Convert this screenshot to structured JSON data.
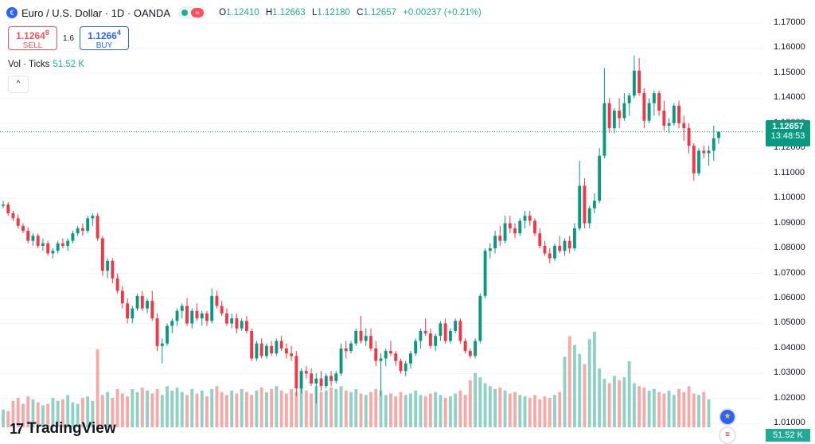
{
  "symbol": {
    "title": "Euro / U.S. Dollar · 1D · OANDA",
    "icon": "euro-dollar-icon",
    "status_icon": "market-open-dot-icon",
    "status_alt_icon": "wave-icon"
  },
  "ohlc": {
    "o_label": "O",
    "o": "1.12410",
    "h_label": "H",
    "h": "1.12663",
    "l_label": "L",
    "l": "1.12180",
    "c_label": "C",
    "c": "1.12657",
    "change": "+0.00237 (+0.21%)"
  },
  "trade": {
    "sell_price_main": "1.1264",
    "sell_price_sup": "8",
    "sell_label": "SELL",
    "spread": "1.6",
    "buy_price_main": "1.1266",
    "buy_price_sup": "4",
    "buy_label": "BUY"
  },
  "volume_legend": {
    "label": "Vol · Ticks",
    "value": "51.52 K"
  },
  "collapse_icon": "chevron-up-icon",
  "price_axis": {
    "ticks": [
      "1.17000",
      "1.16000",
      "1.15000",
      "1.14000",
      "1.13000",
      "1.12000",
      "1.11000",
      "1.10000",
      "1.09000",
      "1.08000",
      "1.07000",
      "1.06000",
      "1.05000",
      "1.04000",
      "1.03000",
      "1.02000",
      "1.01000"
    ],
    "last_price": "1.12657",
    "countdown": "13:48:53",
    "volume_tag": "51.52 K"
  },
  "branding": {
    "logo_text": "TradingView",
    "logo_icon": "tradingview-logo-icon"
  },
  "colors": {
    "up": "#089981",
    "down": "#f23645",
    "vol_up": "#8fd1c5",
    "vol_down": "#f7a9a7",
    "accent": "#2962ff"
  },
  "chart_data": {
    "type": "candlestick",
    "title": "Euro / U.S. Dollar · 1D · OANDA",
    "ylim": [
      1.0085,
      1.1735
    ],
    "last_price": 1.12657,
    "candles": [
      [
        1.097,
        1.099,
        1.096,
        1.0975
      ],
      [
        1.0975,
        1.0985,
        1.093,
        1.094
      ],
      [
        1.094,
        1.095,
        1.091,
        1.092
      ],
      [
        1.092,
        1.0935,
        1.088,
        1.089
      ],
      [
        1.089,
        1.09,
        1.086,
        1.087
      ],
      [
        1.087,
        1.0885,
        1.082,
        1.083
      ],
      [
        1.083,
        1.086,
        1.081,
        1.085
      ],
      [
        1.085,
        1.086,
        1.08,
        1.081
      ],
      [
        1.081,
        1.084,
        1.079,
        1.082
      ],
      [
        1.082,
        1.083,
        1.077,
        1.078
      ],
      [
        1.078,
        1.08,
        1.076,
        1.079
      ],
      [
        1.079,
        1.083,
        1.078,
        1.082
      ],
      [
        1.082,
        1.084,
        1.08,
        1.081
      ],
      [
        1.081,
        1.084,
        1.079,
        1.083
      ],
      [
        1.083,
        1.087,
        1.082,
        1.086
      ],
      [
        1.086,
        1.089,
        1.085,
        1.088
      ],
      [
        1.088,
        1.09,
        1.085,
        1.087
      ],
      [
        1.087,
        1.093,
        1.086,
        1.092
      ],
      [
        1.092,
        1.094,
        1.089,
        1.093
      ],
      [
        1.093,
        1.094,
        1.083,
        1.084
      ],
      [
        1.084,
        1.085,
        1.069,
        1.071
      ],
      [
        1.071,
        1.076,
        1.068,
        1.075
      ],
      [
        1.075,
        1.076,
        1.066,
        1.068
      ],
      [
        1.068,
        1.07,
        1.062,
        1.063
      ],
      [
        1.063,
        1.065,
        1.056,
        1.058
      ],
      [
        1.058,
        1.06,
        1.05,
        1.052
      ],
      [
        1.052,
        1.057,
        1.05,
        1.056
      ],
      [
        1.056,
        1.062,
        1.055,
        1.061
      ],
      [
        1.061,
        1.063,
        1.055,
        1.056
      ],
      [
        1.056,
        1.06,
        1.054,
        1.059
      ],
      [
        1.059,
        1.063,
        1.051,
        1.052
      ],
      [
        1.052,
        1.054,
        1.039,
        1.041
      ],
      [
        1.041,
        1.044,
        1.034,
        1.042
      ],
      [
        1.042,
        1.05,
        1.041,
        1.049
      ],
      [
        1.049,
        1.052,
        1.046,
        1.051
      ],
      [
        1.051,
        1.056,
        1.049,
        1.055
      ],
      [
        1.055,
        1.058,
        1.052,
        1.057
      ],
      [
        1.057,
        1.06,
        1.049,
        1.05
      ],
      [
        1.05,
        1.056,
        1.048,
        1.055
      ],
      [
        1.055,
        1.058,
        1.051,
        1.052
      ],
      [
        1.052,
        1.055,
        1.049,
        1.054
      ],
      [
        1.054,
        1.055,
        1.049,
        1.051
      ],
      [
        1.051,
        1.064,
        1.05,
        1.061
      ],
      [
        1.061,
        1.063,
        1.056,
        1.057
      ],
      [
        1.057,
        1.059,
        1.053,
        1.054
      ],
      [
        1.054,
        1.056,
        1.049,
        1.05
      ],
      [
        1.05,
        1.054,
        1.048,
        1.052
      ],
      [
        1.052,
        1.054,
        1.046,
        1.048
      ],
      [
        1.048,
        1.052,
        1.047,
        1.051
      ],
      [
        1.051,
        1.053,
        1.046,
        1.047
      ],
      [
        1.047,
        1.048,
        1.035,
        1.036
      ],
      [
        1.036,
        1.043,
        1.035,
        1.042
      ],
      [
        1.042,
        1.044,
        1.036,
        1.037
      ],
      [
        1.037,
        1.042,
        1.036,
        1.041
      ],
      [
        1.041,
        1.043,
        1.037,
        1.038
      ],
      [
        1.038,
        1.044,
        1.037,
        1.043
      ],
      [
        1.043,
        1.045,
        1.039,
        1.04
      ],
      [
        1.04,
        1.042,
        1.036,
        1.038
      ],
      [
        1.038,
        1.041,
        1.035,
        1.037
      ],
      [
        1.037,
        1.039,
        1.021,
        1.024
      ],
      [
        1.024,
        1.032,
        1.022,
        1.031
      ],
      [
        1.031,
        1.033,
        1.028,
        1.03
      ],
      [
        1.03,
        1.032,
        1.025,
        1.026
      ],
      [
        1.026,
        1.03,
        1.018,
        1.028
      ],
      [
        1.028,
        1.031,
        1.023,
        1.025
      ],
      [
        1.025,
        1.03,
        1.024,
        1.029
      ],
      [
        1.029,
        1.031,
        1.025,
        1.027
      ],
      [
        1.027,
        1.031,
        1.026,
        1.03
      ],
      [
        1.03,
        1.042,
        1.029,
        1.04
      ],
      [
        1.04,
        1.043,
        1.036,
        1.039
      ],
      [
        1.039,
        1.043,
        1.038,
        1.042
      ],
      [
        1.042,
        1.048,
        1.041,
        1.047
      ],
      [
        1.047,
        1.053,
        1.042,
        1.043
      ],
      [
        1.043,
        1.048,
        1.041,
        1.045
      ],
      [
        1.045,
        1.048,
        1.039,
        1.04
      ],
      [
        1.04,
        1.043,
        1.033,
        1.035
      ],
      [
        1.035,
        1.038,
        1.021,
        1.036
      ],
      [
        1.036,
        1.04,
        1.033,
        1.039
      ],
      [
        1.039,
        1.043,
        1.037,
        1.038
      ],
      [
        1.038,
        1.039,
        1.033,
        1.035
      ],
      [
        1.035,
        1.036,
        1.03,
        1.031
      ],
      [
        1.031,
        1.035,
        1.029,
        1.034
      ],
      [
        1.034,
        1.039,
        1.032,
        1.038
      ],
      [
        1.038,
        1.044,
        1.037,
        1.043
      ],
      [
        1.043,
        1.048,
        1.04,
        1.047
      ],
      [
        1.047,
        1.052,
        1.045,
        1.046
      ],
      [
        1.046,
        1.048,
        1.04,
        1.041
      ],
      [
        1.041,
        1.046,
        1.039,
        1.045
      ],
      [
        1.045,
        1.051,
        1.043,
        1.05
      ],
      [
        1.05,
        1.052,
        1.042,
        1.043
      ],
      [
        1.043,
        1.048,
        1.042,
        1.047
      ],
      [
        1.047,
        1.052,
        1.046,
        1.051
      ],
      [
        1.051,
        1.052,
        1.042,
        1.043
      ],
      [
        1.043,
        1.044,
        1.038,
        1.039
      ],
      [
        1.039,
        1.04,
        1.036,
        1.037
      ],
      [
        1.037,
        1.044,
        1.036,
        1.043
      ],
      [
        1.043,
        1.062,
        1.042,
        1.061
      ],
      [
        1.061,
        1.08,
        1.06,
        1.079
      ],
      [
        1.079,
        1.082,
        1.076,
        1.08
      ],
      [
        1.08,
        1.087,
        1.078,
        1.085
      ],
      [
        1.085,
        1.089,
        1.081,
        1.083
      ],
      [
        1.083,
        1.093,
        1.082,
        1.09
      ],
      [
        1.09,
        1.093,
        1.086,
        1.088
      ],
      [
        1.088,
        1.09,
        1.084,
        1.086
      ],
      [
        1.086,
        1.092,
        1.085,
        1.091
      ],
      [
        1.091,
        1.095,
        1.088,
        1.093
      ],
      [
        1.093,
        1.095,
        1.089,
        1.091
      ],
      [
        1.091,
        1.092,
        1.085,
        1.086
      ],
      [
        1.086,
        1.088,
        1.08,
        1.081
      ],
      [
        1.081,
        1.083,
        1.077,
        1.078
      ],
      [
        1.078,
        1.08,
        1.074,
        1.076
      ],
      [
        1.076,
        1.082,
        1.075,
        1.081
      ],
      [
        1.081,
        1.085,
        1.078,
        1.079
      ],
      [
        1.079,
        1.084,
        1.077,
        1.083
      ],
      [
        1.083,
        1.085,
        1.078,
        1.08
      ],
      [
        1.08,
        1.09,
        1.079,
        1.088
      ],
      [
        1.088,
        1.115,
        1.087,
        1.105
      ],
      [
        1.105,
        1.108,
        1.088,
        1.09
      ],
      [
        1.09,
        1.097,
        1.088,
        1.096
      ],
      [
        1.096,
        1.102,
        1.094,
        1.099
      ],
      [
        1.099,
        1.12,
        1.098,
        1.117
      ],
      [
        1.117,
        1.152,
        1.116,
        1.138
      ],
      [
        1.138,
        1.14,
        1.126,
        1.128
      ],
      [
        1.128,
        1.136,
        1.126,
        1.135
      ],
      [
        1.135,
        1.14,
        1.128,
        1.132
      ],
      [
        1.132,
        1.142,
        1.131,
        1.138
      ],
      [
        1.138,
        1.142,
        1.133,
        1.141
      ],
      [
        1.141,
        1.157,
        1.14,
        1.151
      ],
      [
        1.151,
        1.156,
        1.141,
        1.142
      ],
      [
        1.142,
        1.144,
        1.128,
        1.131
      ],
      [
        1.131,
        1.14,
        1.13,
        1.138
      ],
      [
        1.138,
        1.143,
        1.133,
        1.142
      ],
      [
        1.142,
        1.143,
        1.133,
        1.135
      ],
      [
        1.135,
        1.139,
        1.127,
        1.129
      ],
      [
        1.129,
        1.132,
        1.126,
        1.13
      ],
      [
        1.13,
        1.138,
        1.129,
        1.137
      ],
      [
        1.137,
        1.139,
        1.128,
        1.13
      ],
      [
        1.13,
        1.133,
        1.123,
        1.128
      ],
      [
        1.128,
        1.13,
        1.118,
        1.121
      ],
      [
        1.121,
        1.122,
        1.107,
        1.11
      ],
      [
        1.11,
        1.12,
        1.109,
        1.119
      ],
      [
        1.119,
        1.121,
        1.116,
        1.118
      ],
      [
        1.118,
        1.121,
        1.113,
        1.119
      ],
      [
        1.119,
        1.129,
        1.115,
        1.124
      ],
      [
        1.1241,
        1.12663,
        1.1218,
        1.12657
      ]
    ],
    "volume": [
      1.2,
      1.1,
      1.8,
      2.0,
      1.6,
      2.1,
      1.9,
      1.7,
      1.5,
      1.6,
      2.0,
      1.8,
      1.9,
      2.2,
      1.7,
      1.6,
      2.0,
      2.1,
      1.8,
      5.3,
      2.2,
      2.4,
      2.0,
      2.6,
      2.3,
      2.1,
      2.6,
      2.4,
      2.7,
      2.5,
      2.3,
      2.6,
      2.2,
      2.8,
      2.5,
      2.7,
      2.4,
      2.2,
      2.6,
      2.3,
      2.5,
      2.1,
      2.6,
      2.8,
      2.4,
      2.2,
      2.5,
      2.3,
      2.6,
      2.4,
      2.2,
      2.5,
      2.7,
      2.4,
      2.6,
      2.8,
      2.5,
      2.3,
      2.6,
      2.4,
      2.7,
      2.5,
      2.3,
      2.8,
      2.4,
      2.5,
      2.7,
      2.6,
      2.8,
      2.5,
      2.4,
      2.6,
      2.3,
      2.2,
      2.4,
      2.6,
      2.5,
      2.2,
      2.3,
      2.1,
      2.4,
      2.2,
      2.3,
      2.5,
      2.2,
      2.1,
      2.3,
      2.4,
      2.2,
      2.0,
      2.1,
      2.3,
      2.5,
      2.2,
      3.2,
      3.7,
      3.4,
      3.0,
      2.8,
      2.6,
      2.7,
      2.5,
      2.3,
      2.4,
      2.2,
      2.1,
      2.0,
      2.2,
      1.9,
      2.1,
      2.0,
      2.2,
      2.4,
      4.8,
      6.2,
      5.6,
      5.0,
      4.3,
      6.0,
      6.5,
      4.0,
      3.3,
      3.0,
      3.5,
      3.2,
      3.4,
      4.5,
      3.0,
      2.8,
      2.7,
      2.5,
      2.6,
      2.4,
      2.3,
      2.5,
      2.2,
      2.6,
      2.4,
      2.8,
      2.3,
      2.2,
      2.4,
      1.9
    ]
  }
}
